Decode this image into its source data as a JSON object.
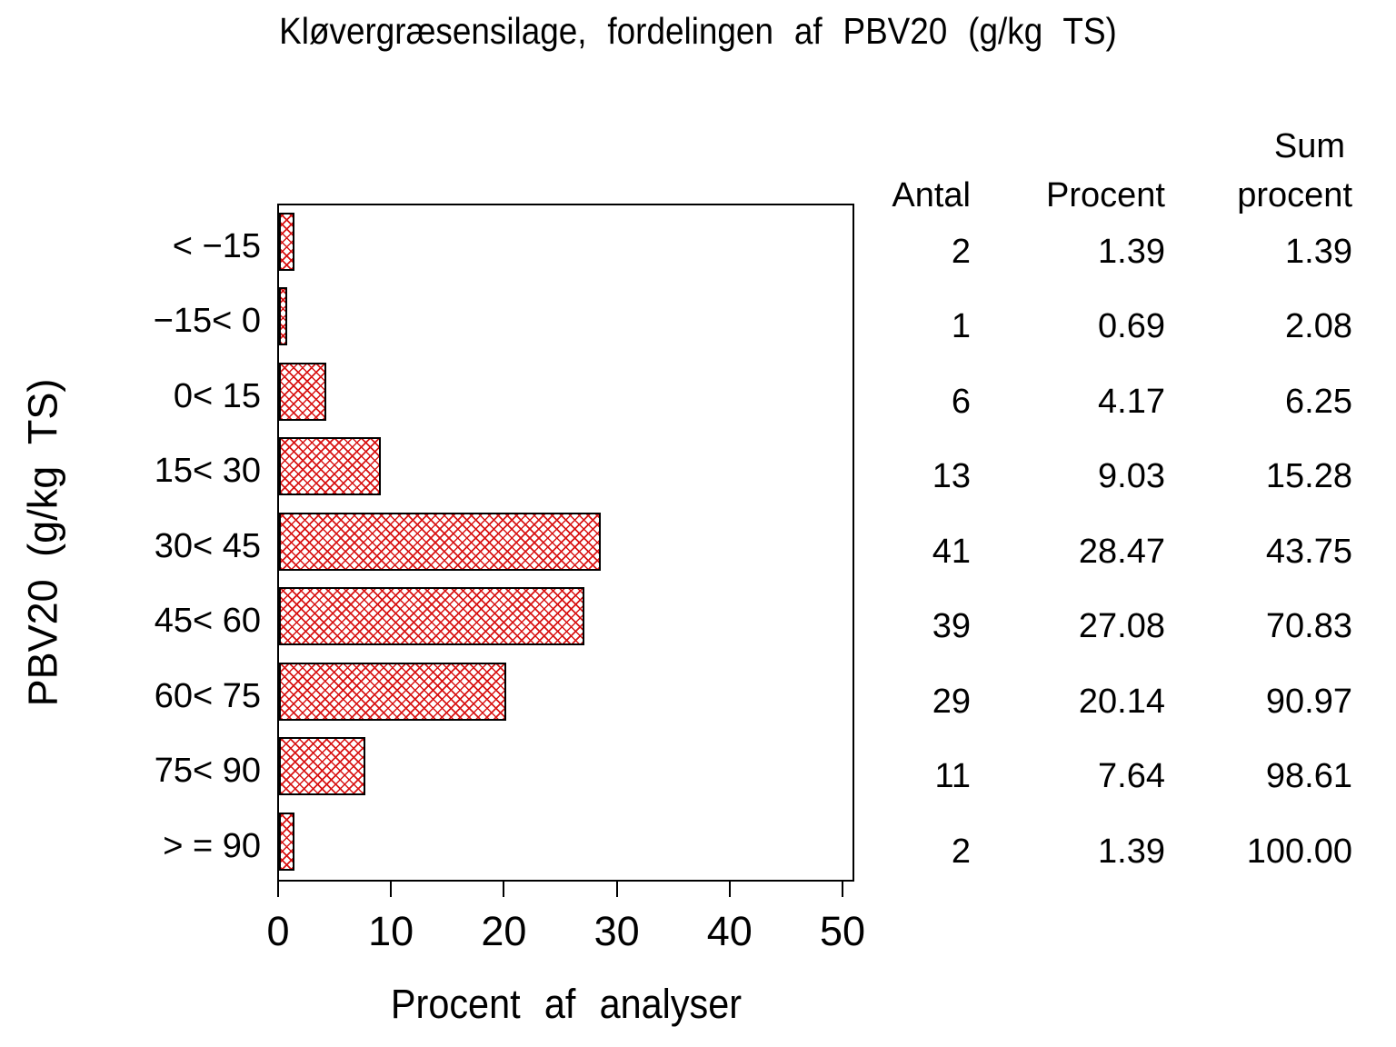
{
  "title": "Kløvergræsensilage, fordelingen af PBV20 (g/kg TS)",
  "chart_data": {
    "type": "bar",
    "orientation": "horizontal",
    "title": "Kløvergræsensilage, fordelingen af PBV20 (g/kg TS)",
    "xlabel": "Procent af analyser",
    "ylabel": "PBV20 (g/kg TS)",
    "categories": [
      "< −15",
      "−15< 0",
      "0< 15",
      "15< 30",
      "30< 45",
      "45< 60",
      "60< 75",
      "75< 90",
      "> = 90"
    ],
    "values": [
      1.39,
      0.69,
      4.17,
      9.03,
      28.47,
      27.08,
      20.14,
      7.64,
      1.39
    ],
    "counts": [
      2,
      1,
      6,
      13,
      41,
      39,
      29,
      11,
      2
    ],
    "cumulative_percent": [
      1.39,
      2.08,
      6.25,
      15.28,
      43.75,
      70.83,
      90.97,
      98.61,
      100.0
    ],
    "xticks": [
      "0",
      "10",
      "20",
      "30",
      "40",
      "50"
    ],
    "xlim": [
      0,
      50
    ],
    "grid": false,
    "legend": "none",
    "bar_hatch_color": "#d81414",
    "bar_border_color": "#000000",
    "frame_color": "#000000"
  },
  "table": {
    "headers": {
      "antal": "Antal",
      "procent": "Procent",
      "sum_line1": "Sum",
      "sum_line2": "procent"
    },
    "rows": [
      {
        "antal": "2",
        "procent": "1.39",
        "sum": "1.39"
      },
      {
        "antal": "1",
        "procent": "0.69",
        "sum": "2.08"
      },
      {
        "antal": "6",
        "procent": "4.17",
        "sum": "6.25"
      },
      {
        "antal": "13",
        "procent": "9.03",
        "sum": "15.28"
      },
      {
        "antal": "41",
        "procent": "28.47",
        "sum": "43.75"
      },
      {
        "antal": "39",
        "procent": "27.08",
        "sum": "70.83"
      },
      {
        "antal": "29",
        "procent": "20.14",
        "sum": "90.97"
      },
      {
        "antal": "11",
        "procent": "7.64",
        "sum": "98.61"
      },
      {
        "antal": "2",
        "procent": "1.39",
        "sum": "100.00"
      }
    ]
  }
}
